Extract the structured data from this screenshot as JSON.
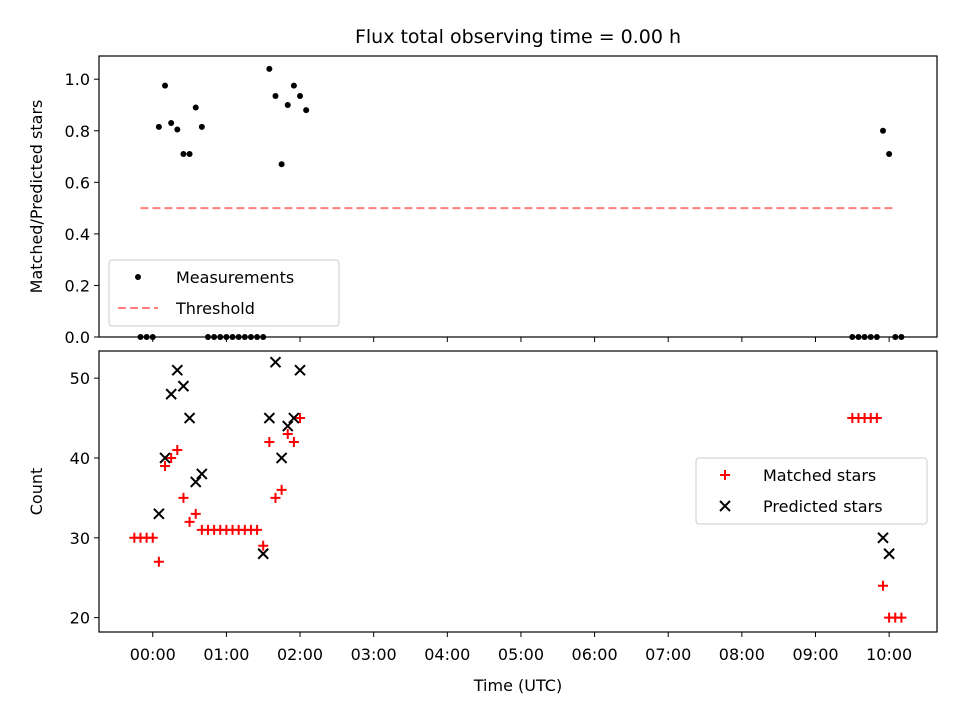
{
  "chart_data": [
    {
      "type": "scatter",
      "title": "Flux total observing time = 0.00 h",
      "xlabel": "",
      "ylabel": "Matched/Predicted stars",
      "ylim": [
        0,
        1.09
      ],
      "yticks": [
        0.0,
        0.2,
        0.4,
        0.6,
        0.8,
        1.0
      ],
      "ytick_labels": [
        "0.0",
        "0.2",
        "0.4",
        "0.6",
        "0.8",
        "1.0"
      ],
      "grid": false,
      "legend_position": "lower-left",
      "series": [
        {
          "name": "Measurements",
          "marker": "dot",
          "color": "#000000",
          "points": [
            [
              "23:50",
              0.0
            ],
            [
              "23:55",
              0.0
            ],
            [
              "00:00",
              0.0
            ],
            [
              "00:05",
              0.815
            ],
            [
              "00:10",
              0.975
            ],
            [
              "00:15",
              0.83
            ],
            [
              "00:20",
              0.805
            ],
            [
              "00:25",
              0.71
            ],
            [
              "00:30",
              0.71
            ],
            [
              "00:35",
              0.89
            ],
            [
              "00:40",
              0.815
            ],
            [
              "00:45",
              0.0
            ],
            [
              "00:50",
              0.0
            ],
            [
              "00:55",
              0.0
            ],
            [
              "01:00",
              0.0
            ],
            [
              "01:05",
              0.0
            ],
            [
              "01:10",
              0.0
            ],
            [
              "01:15",
              0.0
            ],
            [
              "01:20",
              0.0
            ],
            [
              "01:25",
              0.0
            ],
            [
              "01:30",
              0.0
            ],
            [
              "01:35",
              1.04
            ],
            [
              "01:40",
              0.935
            ],
            [
              "01:45",
              0.67
            ],
            [
              "01:50",
              0.9
            ],
            [
              "01:55",
              0.975
            ],
            [
              "02:00",
              0.935
            ],
            [
              "02:05",
              0.88
            ],
            [
              "09:30",
              0.0
            ],
            [
              "09:35",
              0.0
            ],
            [
              "09:40",
              0.0
            ],
            [
              "09:45",
              0.0
            ],
            [
              "09:50",
              0.0
            ],
            [
              "09:55",
              0.8
            ],
            [
              "10:00",
              0.71
            ],
            [
              "10:05",
              0.0
            ],
            [
              "10:10",
              0.0
            ]
          ]
        },
        {
          "name": "Threshold",
          "marker": "dashed-line",
          "color": "#ff7f7f",
          "points": [
            [
              "23:50",
              0.5
            ],
            [
              "10:05",
              0.5
            ]
          ]
        }
      ]
    },
    {
      "type": "scatter",
      "title": "",
      "xlabel": "Time (UTC)",
      "ylabel": "Count",
      "ylim": [
        18.2,
        53.4
      ],
      "yticks": [
        20,
        30,
        40,
        50
      ],
      "ytick_labels": [
        "20",
        "30",
        "40",
        "50"
      ],
      "xticks": [
        "00:00",
        "01:00",
        "02:00",
        "03:00",
        "04:00",
        "05:00",
        "06:00",
        "07:00",
        "08:00",
        "09:00",
        "10:00"
      ],
      "grid": false,
      "legend_position": "center-right",
      "series": [
        {
          "name": "Matched stars",
          "marker": "plus",
          "color": "#ff0000",
          "points": [
            [
              "23:45",
              30
            ],
            [
              "23:50",
              30
            ],
            [
              "23:55",
              30
            ],
            [
              "00:00",
              30
            ],
            [
              "00:05",
              27
            ],
            [
              "00:10",
              39
            ],
            [
              "00:15",
              40
            ],
            [
              "00:20",
              41
            ],
            [
              "00:25",
              35
            ],
            [
              "00:30",
              32
            ],
            [
              "00:35",
              33
            ],
            [
              "00:40",
              31
            ],
            [
              "00:45",
              31
            ],
            [
              "00:50",
              31
            ],
            [
              "00:55",
              31
            ],
            [
              "01:00",
              31
            ],
            [
              "01:05",
              31
            ],
            [
              "01:10",
              31
            ],
            [
              "01:15",
              31
            ],
            [
              "01:20",
              31
            ],
            [
              "01:25",
              31
            ],
            [
              "01:30",
              29
            ],
            [
              "01:35",
              42
            ],
            [
              "01:40",
              35
            ],
            [
              "01:45",
              36
            ],
            [
              "01:50",
              43
            ],
            [
              "01:55",
              42
            ],
            [
              "02:00",
              45
            ],
            [
              "09:30",
              45
            ],
            [
              "09:35",
              45
            ],
            [
              "09:40",
              45
            ],
            [
              "09:45",
              45
            ],
            [
              "09:50",
              45
            ],
            [
              "09:55",
              24
            ],
            [
              "10:00",
              20
            ],
            [
              "10:05",
              20
            ],
            [
              "10:10",
              20
            ]
          ]
        },
        {
          "name": "Predicted stars",
          "marker": "x",
          "color": "#000000",
          "points": [
            [
              "00:05",
              33
            ],
            [
              "00:10",
              40
            ],
            [
              "00:15",
              48
            ],
            [
              "00:20",
              51
            ],
            [
              "00:25",
              49
            ],
            [
              "00:30",
              45
            ],
            [
              "00:35",
              37
            ],
            [
              "00:40",
              38
            ],
            [
              "01:30",
              28
            ],
            [
              "01:35",
              45
            ],
            [
              "01:40",
              52
            ],
            [
              "01:45",
              40
            ],
            [
              "01:50",
              44
            ],
            [
              "01:55",
              45
            ],
            [
              "02:00",
              51
            ],
            [
              "09:55",
              30
            ],
            [
              "10:00",
              28
            ]
          ]
        }
      ]
    }
  ]
}
